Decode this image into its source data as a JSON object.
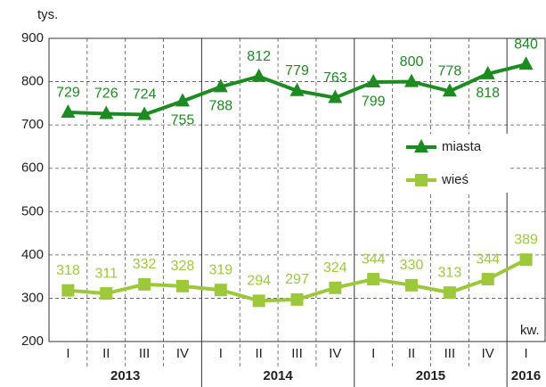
{
  "chart_data": {
    "type": "line",
    "y_label": "tys.",
    "x_label": "kw.",
    "categories": [
      "I",
      "II",
      "III",
      "IV",
      "I",
      "II",
      "III",
      "IV",
      "I",
      "II",
      "III",
      "IV",
      "I"
    ],
    "groups": [
      "2013",
      "2014",
      "2015",
      "2016"
    ],
    "series": [
      {
        "name": "miasta",
        "color": "#1e8a22",
        "marker": "triangle",
        "values": [
          729,
          726,
          724,
          755,
          788,
          812,
          779,
          763,
          799,
          800,
          778,
          818,
          840
        ]
      },
      {
        "name": "wieś",
        "color": "#9cc83a",
        "marker": "square",
        "values": [
          318,
          311,
          332,
          328,
          319,
          294,
          297,
          324,
          344,
          330,
          313,
          344,
          389
        ]
      }
    ],
    "ylim": [
      200,
      900
    ],
    "yticks": [
      200,
      300,
      400,
      500,
      600,
      700,
      800,
      900
    ],
    "grid": true
  }
}
